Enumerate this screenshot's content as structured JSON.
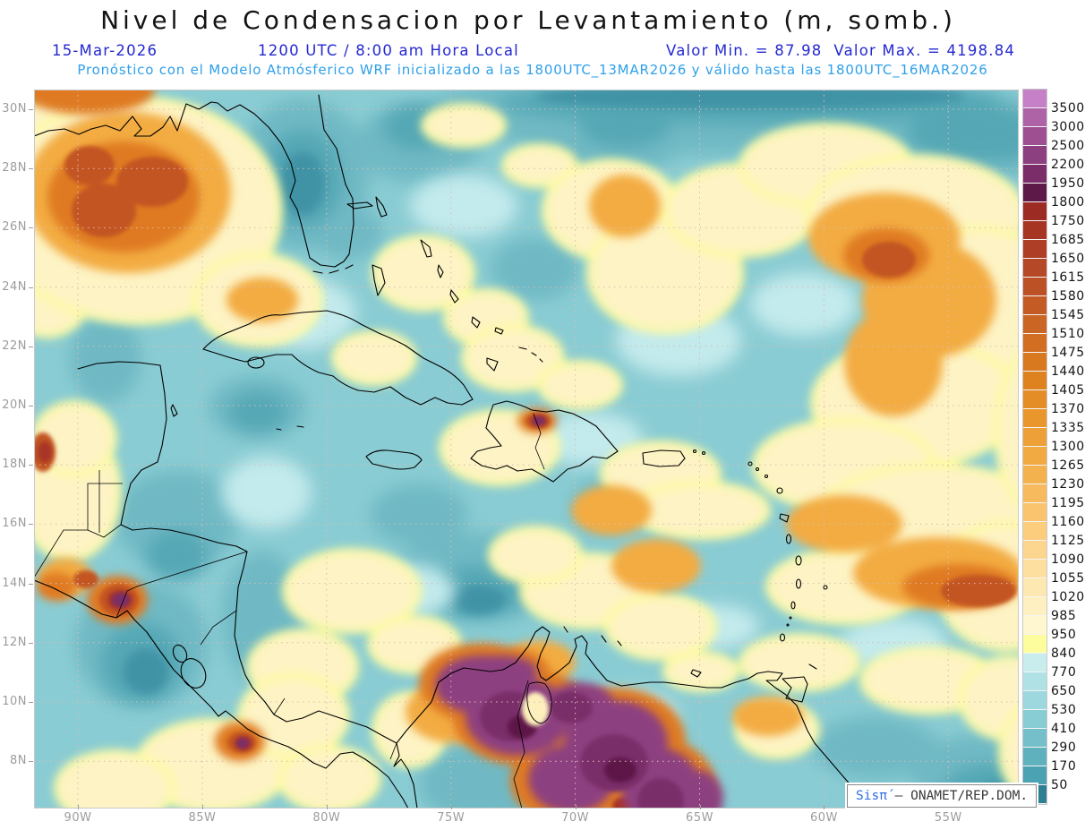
{
  "title": "Nivel de Condensacion por Levantamiento (m, somb.)",
  "header": {
    "date": "15-Mar-2026",
    "valid_time": "1200 UTC / 8:00 am Hora Local",
    "value_min": "Valor Min. = 87.98",
    "value_max": "Valor Max. = 4198.84",
    "model_line": "Pronóstico con el Modelo Atmósferico WRF inicializado a las 1800UTC_13MAR2026 y válido hasta las  1800UTC_16MAR2026"
  },
  "field": {
    "units": "m",
    "min": 87.98,
    "max": 4198.84
  },
  "watermark": {
    "brand": "Sisπ́",
    "org": " – ONAMET/REP.DOM."
  },
  "axes": {
    "lat_labels": [
      "30N",
      "28N",
      "26N",
      "24N",
      "22N",
      "20N",
      "18N",
      "16N",
      "14N",
      "12N",
      "10N",
      "8N"
    ],
    "lon_labels": [
      "90W",
      "85W",
      "80W",
      "75W",
      "70W",
      "65W",
      "60W",
      "55W"
    ]
  },
  "colorbar": {
    "tick_labels": [
      "3500",
      "3000",
      "2500",
      "2200",
      "1950",
      "1800",
      "1750",
      "1685",
      "1650",
      "1615",
      "1580",
      "1545",
      "1510",
      "1475",
      "1440",
      "1405",
      "1370",
      "1335",
      "1300",
      "1265",
      "1230",
      "1195",
      "1160",
      "1125",
      "1090",
      "1055",
      "1020",
      "985",
      "950",
      "840",
      "770",
      "650",
      "530",
      "410",
      "290",
      "170",
      "50"
    ],
    "colors_top_to_bottom": [
      "#c580c7",
      "#ad63a6",
      "#9d4f92",
      "#8d4080",
      "#7a2d69",
      "#5d1947",
      "#9c2b23",
      "#a63524",
      "#ae3e25",
      "#b54826",
      "#bd5126",
      "#c45b25",
      "#cb6523",
      "#d26e21",
      "#d8781f",
      "#de8220",
      "#e48c26",
      "#e9962d",
      "#eda037",
      "#f1a942",
      "#f4b24f",
      "#f7bb5e",
      "#f9c46d",
      "#fbcd7d",
      "#fcd68e",
      "#fddfa0",
      "#fde8b1",
      "#fef0c1",
      "#fef7d0",
      "#fdfd9d",
      "#c9eded",
      "#b0e2e5",
      "#9cd8dd",
      "#88ccd4",
      "#74bfc9",
      "#60b1be",
      "#4aa2b2",
      "#2d7f93"
    ]
  },
  "colors": {
    "header_blue": "#2428d0",
    "header_azure": "#2ea0ea",
    "axis_label": "#9c9c9c",
    "grid": "#dcbcb2",
    "coastline": "#000000",
    "ocean_base": "#8accd3",
    "watermark_brand": "#2f6fe4",
    "watermark_text": "#3a3a3a"
  }
}
